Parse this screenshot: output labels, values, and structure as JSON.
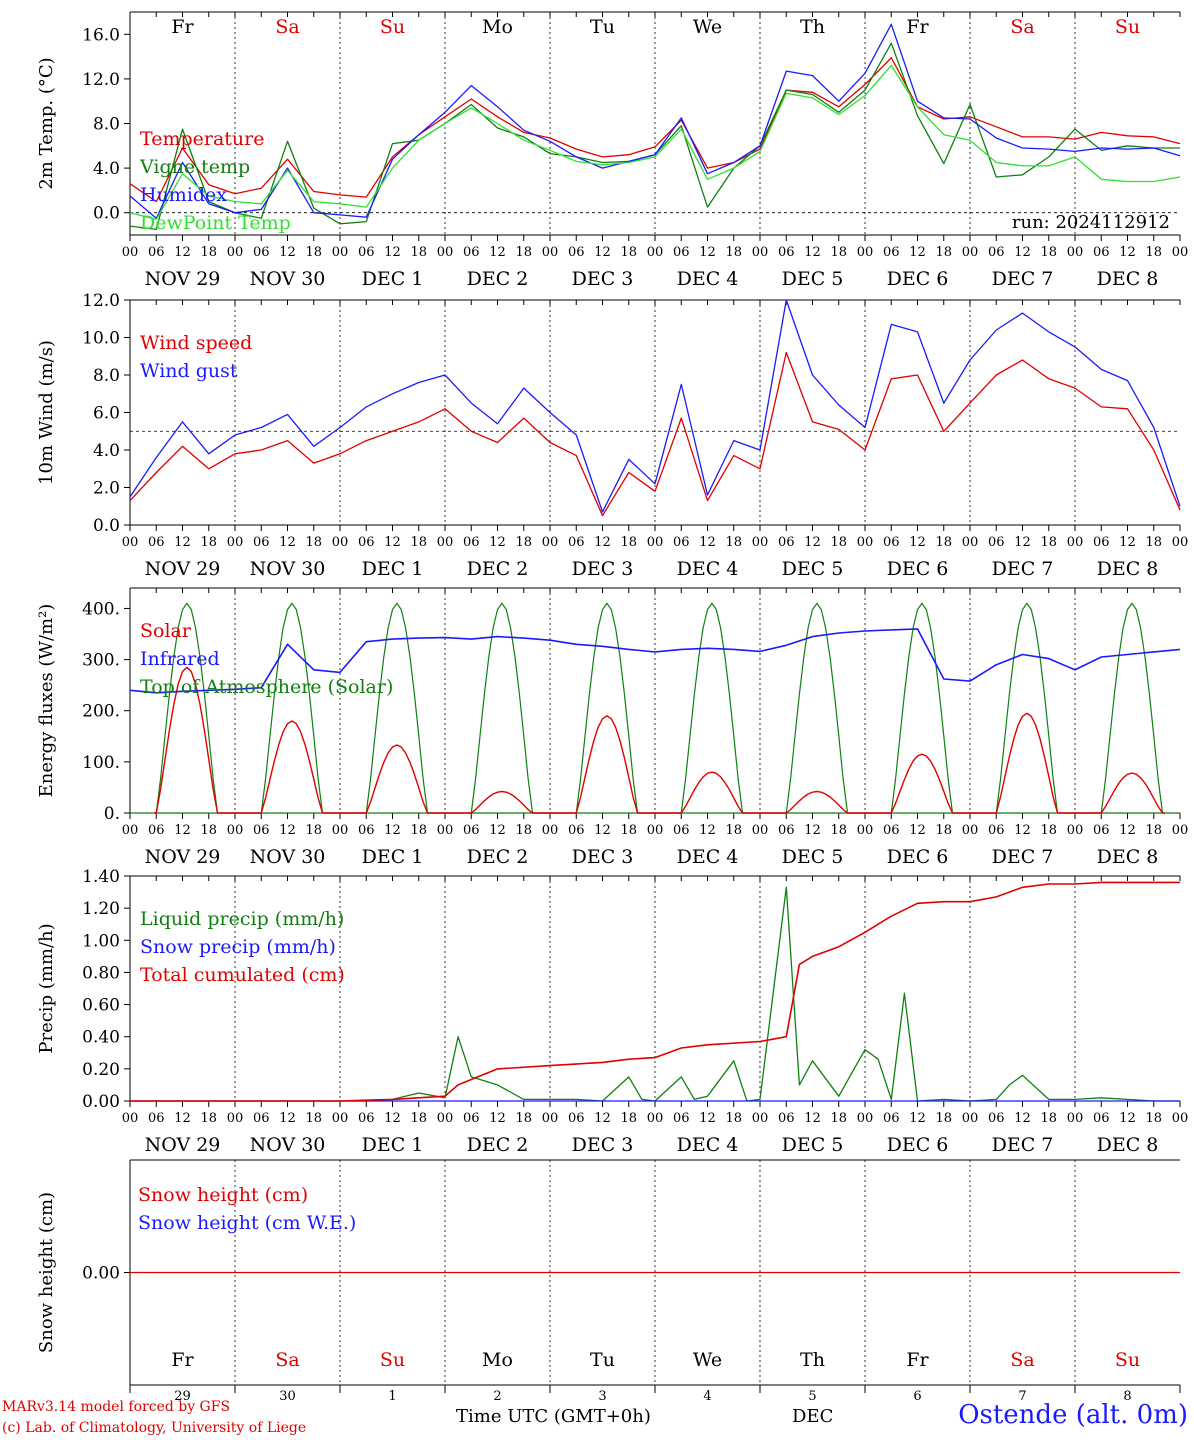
{
  "station": "Ostende (alt. 0m)",
  "credits": [
    "MARv3.14 model forced by GFS",
    "(c) Lab. of Climatology, University of Liege"
  ],
  "run_label": "run: 2024112912",
  "time_axis_label": "Time UTC (GMT+0h)",
  "month_label": "DEC",
  "colors": {
    "red": "#e00000",
    "green": "#108010",
    "blue": "#1a1aff",
    "lightgreen": "#30e030",
    "grid": "#000000"
  },
  "chart_data": [
    {
      "type": "line",
      "ylabel": "2m Temp. (°C)",
      "ylim": [
        -2,
        18
      ],
      "yticks": [
        0,
        4,
        8,
        12,
        16
      ],
      "ytick_labels": [
        "0.0",
        "4.0",
        "8.0",
        "12.0",
        "16.0"
      ],
      "hline": 0,
      "weekdays": [
        "Fr",
        "Sa",
        "Su",
        "Mo",
        "Tu",
        "We",
        "Th",
        "Fr",
        "Sa",
        "Su"
      ],
      "weekday_colors": [
        "black",
        "red",
        "red",
        "black",
        "black",
        "black",
        "black",
        "black",
        "red",
        "red"
      ],
      "day_labels": [
        "NOV 29",
        "NOV 30",
        "DEC 1",
        "DEC 2",
        "DEC 3",
        "DEC 4",
        "DEC 5",
        "DEC 6",
        "DEC 7",
        "DEC 8"
      ],
      "hour_ticks": [
        "00",
        "06",
        "12",
        "18"
      ],
      "x_unit": "hours since Nov 29 00 UTC",
      "series": [
        {
          "name": "Temperature",
          "color": "red",
          "x": [
            0,
            6,
            12,
            18,
            24,
            30,
            36,
            42,
            48,
            54,
            60,
            66,
            72,
            78,
            84,
            90,
            96,
            102,
            108,
            114,
            120,
            126,
            132,
            138,
            144,
            150,
            156,
            162,
            168,
            174,
            180,
            186,
            192,
            198,
            204,
            210,
            216,
            222,
            228,
            234,
            240
          ],
          "y": [
            2.6,
            1.0,
            5.8,
            2.5,
            1.7,
            2.2,
            4.8,
            1.9,
            1.6,
            1.4,
            5.0,
            7.0,
            8.6,
            10.2,
            8.6,
            7.2,
            6.7,
            5.7,
            5.0,
            5.2,
            5.9,
            8.3,
            4.0,
            4.5,
            5.7,
            11.0,
            10.8,
            9.5,
            11.5,
            13.9,
            9.5,
            8.4,
            8.6,
            7.7,
            6.8,
            6.8,
            6.6,
            7.2,
            6.9,
            6.8,
            6.2
          ]
        },
        {
          "name": "Vigne temp",
          "color": "green",
          "x": [
            0,
            6,
            12,
            18,
            24,
            30,
            36,
            42,
            48,
            54,
            60,
            66,
            72,
            78,
            84,
            90,
            96,
            102,
            108,
            114,
            120,
            126,
            132,
            138,
            144,
            150,
            156,
            162,
            168,
            174,
            180,
            186,
            192,
            198,
            204,
            210,
            216,
            222,
            228,
            234,
            240
          ],
          "y": [
            -1.2,
            -1.5,
            7.5,
            1.0,
            0.0,
            -0.5,
            6.4,
            0.4,
            -1.0,
            -0.8,
            6.2,
            6.5,
            8.0,
            9.7,
            7.6,
            6.8,
            5.3,
            5.0,
            4.5,
            4.6,
            5.2,
            7.8,
            0.5,
            4.0,
            6.0,
            11.0,
            10.6,
            9.0,
            11.0,
            15.2,
            8.7,
            4.4,
            9.7,
            3.2,
            3.4,
            5.0,
            7.5,
            5.6,
            6.0,
            5.8,
            5.8
          ]
        },
        {
          "name": "Humidex",
          "color": "blue",
          "x": [
            0,
            6,
            12,
            18,
            24,
            30,
            36,
            42,
            48,
            54,
            60,
            66,
            72,
            78,
            84,
            90,
            96,
            102,
            108,
            114,
            120,
            126,
            132,
            138,
            144,
            150,
            156,
            162,
            168,
            174,
            180,
            186,
            192,
            198,
            204,
            210,
            216,
            222,
            228,
            234,
            240
          ],
          "y": [
            1.5,
            -0.5,
            4.5,
            0.8,
            0.0,
            0.3,
            4.0,
            0.0,
            -0.2,
            -0.4,
            4.8,
            7.0,
            9.0,
            11.4,
            9.5,
            7.4,
            6.4,
            5.0,
            4.0,
            4.6,
            5.2,
            8.5,
            3.5,
            4.5,
            6.0,
            12.7,
            12.3,
            10.0,
            12.5,
            16.9,
            10.0,
            8.5,
            8.4,
            6.7,
            5.8,
            5.7,
            5.5,
            5.8,
            5.7,
            5.8,
            5.1
          ]
        },
        {
          "name": "DewPoint Temp",
          "color": "lightgreen",
          "x": [
            0,
            6,
            12,
            18,
            24,
            30,
            36,
            42,
            48,
            54,
            60,
            66,
            72,
            78,
            84,
            90,
            96,
            102,
            108,
            114,
            120,
            126,
            132,
            138,
            144,
            150,
            156,
            162,
            168,
            174,
            180,
            186,
            192,
            198,
            204,
            210,
            216,
            222,
            228,
            234,
            240
          ],
          "y": [
            0.0,
            -0.6,
            3.5,
            1.5,
            1.0,
            0.8,
            3.8,
            1.0,
            0.8,
            0.5,
            4.0,
            6.5,
            8.0,
            9.4,
            8.0,
            6.5,
            5.6,
            4.6,
            4.3,
            4.5,
            5.0,
            7.5,
            3.0,
            4.0,
            5.5,
            10.7,
            10.3,
            8.8,
            10.5,
            13.2,
            9.5,
            7.0,
            6.5,
            4.5,
            4.2,
            4.2,
            5.0,
            3.0,
            2.8,
            2.8,
            3.2
          ]
        }
      ]
    },
    {
      "type": "line",
      "ylabel": "10m Wind (m/s)",
      "ylim": [
        0,
        12
      ],
      "yticks": [
        0,
        2,
        4,
        6,
        8,
        10,
        12
      ],
      "ytick_labels": [
        "0.0",
        "2.0",
        "4.0",
        "6.0",
        "8.0",
        "10.0",
        "12.0"
      ],
      "hline": 5,
      "series": [
        {
          "name": "Wind speed",
          "color": "red",
          "x": [
            0,
            6,
            12,
            18,
            24,
            30,
            36,
            42,
            48,
            54,
            60,
            66,
            72,
            78,
            84,
            90,
            96,
            102,
            108,
            114,
            120,
            126,
            132,
            138,
            144,
            150,
            156,
            162,
            168,
            174,
            180,
            186,
            192,
            198,
            204,
            210,
            216,
            222,
            228,
            234,
            240
          ],
          "y": [
            1.3,
            2.8,
            4.2,
            3.0,
            3.8,
            4.0,
            4.5,
            3.3,
            3.8,
            4.5,
            5.0,
            5.5,
            6.2,
            5.0,
            4.4,
            5.7,
            4.4,
            3.7,
            0.5,
            2.8,
            1.8,
            5.7,
            1.3,
            3.7,
            3.0,
            9.2,
            5.5,
            5.1,
            4.0,
            7.8,
            8.0,
            5.0,
            6.5,
            8.0,
            8.8,
            7.8,
            7.3,
            6.3,
            6.2,
            4.0,
            0.8
          ]
        },
        {
          "name": "Wind gust",
          "color": "blue",
          "x": [
            0,
            6,
            12,
            18,
            24,
            30,
            36,
            42,
            48,
            54,
            60,
            66,
            72,
            78,
            84,
            90,
            96,
            102,
            108,
            114,
            120,
            126,
            132,
            138,
            144,
            150,
            156,
            162,
            168,
            174,
            180,
            186,
            192,
            198,
            204,
            210,
            216,
            222,
            228,
            234,
            240
          ],
          "y": [
            1.5,
            3.6,
            5.5,
            3.8,
            4.8,
            5.2,
            5.9,
            4.2,
            5.2,
            6.3,
            7.0,
            7.6,
            8.0,
            6.5,
            5.4,
            7.3,
            6.0,
            4.8,
            0.7,
            3.5,
            2.2,
            7.5,
            1.6,
            4.5,
            4.0,
            12.0,
            8.0,
            6.4,
            5.2,
            10.7,
            10.3,
            6.5,
            8.8,
            10.4,
            11.3,
            10.3,
            9.5,
            8.3,
            7.7,
            5.2,
            1.0
          ]
        }
      ]
    },
    {
      "type": "line",
      "ylabel": "Energy fluxes (W/m²)",
      "ylim": [
        0,
        440
      ],
      "yticks": [
        0,
        100,
        200,
        300,
        400
      ],
      "ytick_labels": [
        "0.",
        "100.",
        "200.",
        "300.",
        "400."
      ],
      "daylight_hours": [
        6,
        20
      ],
      "solar_peaks": [
        285,
        180,
        133,
        42,
        190,
        80,
        42,
        115,
        195,
        78
      ],
      "toa_peak": 410,
      "series": [
        {
          "name": "Solar",
          "color": "red"
        },
        {
          "name": "Infrared",
          "color": "blue",
          "x": [
            0,
            6,
            12,
            18,
            24,
            30,
            36,
            42,
            48,
            54,
            60,
            66,
            72,
            78,
            84,
            90,
            96,
            102,
            108,
            114,
            120,
            126,
            132,
            138,
            144,
            150,
            156,
            162,
            168,
            174,
            180,
            186,
            192,
            198,
            204,
            210,
            216,
            222,
            228,
            234,
            240
          ],
          "y": [
            240,
            235,
            238,
            240,
            242,
            245,
            330,
            280,
            275,
            335,
            340,
            342,
            343,
            340,
            345,
            342,
            338,
            330,
            326,
            320,
            315,
            320,
            322,
            320,
            316,
            328,
            345,
            352,
            356,
            358,
            360,
            262,
            258,
            290,
            310,
            302,
            280,
            305,
            310,
            315,
            320
          ]
        },
        {
          "name": "Top of Atmosphere (Solar)",
          "color": "green"
        }
      ]
    },
    {
      "type": "line",
      "ylabel": "Precip (mm/h)",
      "ylim": [
        0,
        1.4
      ],
      "yticks": [
        0,
        0.2,
        0.4,
        0.6,
        0.8,
        1.0,
        1.2,
        1.4
      ],
      "ytick_labels": [
        "0.00",
        "0.20",
        "0.40",
        "0.60",
        "0.80",
        "1.00",
        "1.20",
        "1.40"
      ],
      "series": [
        {
          "name": "Liquid precip (mm/h)",
          "color": "green",
          "x": [
            0,
            6,
            12,
            18,
            24,
            30,
            36,
            42,
            48,
            54,
            60,
            66,
            72,
            75,
            78,
            84,
            90,
            96,
            102,
            108,
            114,
            117,
            120,
            126,
            129,
            132,
            138,
            141,
            144,
            150,
            153,
            156,
            162,
            168,
            171,
            174,
            177,
            180,
            186,
            192,
            198,
            201,
            204,
            210,
            216,
            222,
            228,
            234,
            240
          ],
          "y": [
            0,
            0,
            0,
            0,
            0,
            0,
            0,
            0,
            0,
            0,
            0.01,
            0.05,
            0.02,
            0.4,
            0.15,
            0.1,
            0.01,
            0.01,
            0.01,
            0,
            0.15,
            0.01,
            0,
            0.15,
            0.01,
            0.03,
            0.25,
            0,
            0.01,
            1.33,
            0.1,
            0.25,
            0.03,
            0.32,
            0.26,
            0.01,
            0.67,
            0,
            0.01,
            0,
            0.01,
            0.1,
            0.16,
            0.01,
            0.01,
            0.02,
            0.01,
            0,
            0
          ]
        },
        {
          "name": "Snow precip (mm/h)",
          "color": "blue",
          "x": [
            0,
            240
          ],
          "y": [
            0,
            0
          ]
        },
        {
          "name": "Total cumulated (cm)",
          "color": "red",
          "x": [
            0,
            48,
            60,
            72,
            75,
            84,
            96,
            108,
            114,
            120,
            126,
            132,
            144,
            150,
            153,
            156,
            162,
            168,
            174,
            180,
            186,
            192,
            198,
            204,
            210,
            216,
            222,
            228,
            234,
            240
          ],
          "y": [
            0,
            0,
            0.01,
            0.03,
            0.1,
            0.2,
            0.22,
            0.24,
            0.26,
            0.27,
            0.33,
            0.35,
            0.37,
            0.4,
            0.85,
            0.9,
            0.96,
            1.05,
            1.15,
            1.23,
            1.24,
            1.24,
            1.27,
            1.33,
            1.35,
            1.35,
            1.36,
            1.36,
            1.36,
            1.36
          ]
        }
      ]
    },
    {
      "type": "line",
      "ylabel": "Snow height (cm)",
      "ylim": [
        -1,
        1
      ],
      "yticks": [
        0
      ],
      "ytick_labels": [
        "0.00"
      ],
      "day_numbers": [
        "29",
        "30",
        "1",
        "2",
        "3",
        "4",
        "5",
        "6",
        "7",
        "8"
      ],
      "series": [
        {
          "name": "Snow height (cm)",
          "color": "red",
          "x": [
            0,
            240
          ],
          "y": [
            0,
            0
          ]
        },
        {
          "name": "Snow height (cm W.E.)",
          "color": "blue"
        }
      ]
    }
  ]
}
